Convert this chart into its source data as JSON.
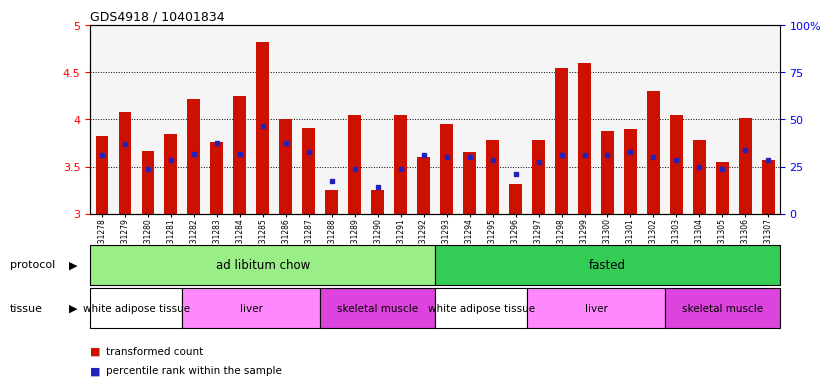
{
  "title": "GDS4918 / 10401834",
  "samples": [
    "GSM1131278",
    "GSM1131279",
    "GSM1131280",
    "GSM1131281",
    "GSM1131282",
    "GSM1131283",
    "GSM1131284",
    "GSM1131285",
    "GSM1131286",
    "GSM1131287",
    "GSM1131288",
    "GSM1131289",
    "GSM1131290",
    "GSM1131291",
    "GSM1131292",
    "GSM1131293",
    "GSM1131294",
    "GSM1131295",
    "GSM1131296",
    "GSM1131297",
    "GSM1131298",
    "GSM1131299",
    "GSM1131300",
    "GSM1131301",
    "GSM1131302",
    "GSM1131303",
    "GSM1131304",
    "GSM1131305",
    "GSM1131306",
    "GSM1131307"
  ],
  "red_values": [
    3.82,
    4.08,
    3.67,
    3.85,
    4.22,
    3.76,
    4.25,
    4.82,
    4.0,
    3.91,
    3.25,
    4.05,
    3.25,
    4.05,
    3.6,
    3.95,
    3.65,
    3.78,
    3.32,
    3.78,
    4.55,
    4.6,
    3.88,
    3.9,
    4.3,
    4.05,
    3.78,
    3.55,
    4.02,
    3.57
  ],
  "blue_values": [
    3.62,
    3.74,
    3.47,
    3.57,
    3.63,
    3.75,
    3.63,
    3.93,
    3.75,
    3.65,
    3.35,
    3.47,
    3.28,
    3.47,
    3.62,
    3.6,
    3.6,
    3.57,
    3.42,
    3.55,
    3.62,
    3.62,
    3.62,
    3.65,
    3.6,
    3.57,
    3.5,
    3.47,
    3.68,
    3.57
  ],
  "protocols": [
    {
      "label": "ad libitum chow",
      "start": 0,
      "end": 15,
      "color": "#99EE88"
    },
    {
      "label": "fasted",
      "start": 15,
      "end": 30,
      "color": "#33CC55"
    }
  ],
  "tissues": [
    {
      "label": "white adipose tissue",
      "start": 0,
      "end": 4,
      "color": "#FFFFFF"
    },
    {
      "label": "liver",
      "start": 4,
      "end": 10,
      "color": "#FF88FF"
    },
    {
      "label": "skeletal muscle",
      "start": 10,
      "end": 15,
      "color": "#EE44EE"
    },
    {
      "label": "white adipose tissue",
      "start": 15,
      "end": 19,
      "color": "#FFFFFF"
    },
    {
      "label": "liver",
      "start": 19,
      "end": 25,
      "color": "#FF88FF"
    },
    {
      "label": "skeletal muscle",
      "start": 25,
      "end": 30,
      "color": "#EE44EE"
    }
  ],
  "ylim_left": [
    3.0,
    5.0
  ],
  "yticks_left": [
    3.0,
    3.5,
    4.0,
    4.5,
    5.0
  ],
  "yticks_right_vals": [
    3.0,
    3.5,
    4.0,
    4.5,
    5.0
  ],
  "yticks_right_labels": [
    "0",
    "25",
    "50",
    "75",
    "100%"
  ],
  "bar_color": "#CC1100",
  "blue_color": "#2222BB",
  "protocol_left_label": "protocol",
  "tissue_left_label": "tissue",
  "legend1": "transformed count",
  "legend2": "percentile rank within the sample",
  "grid_dotted_at": [
    3.5,
    4.0,
    4.5
  ],
  "separator_at": 14.5
}
